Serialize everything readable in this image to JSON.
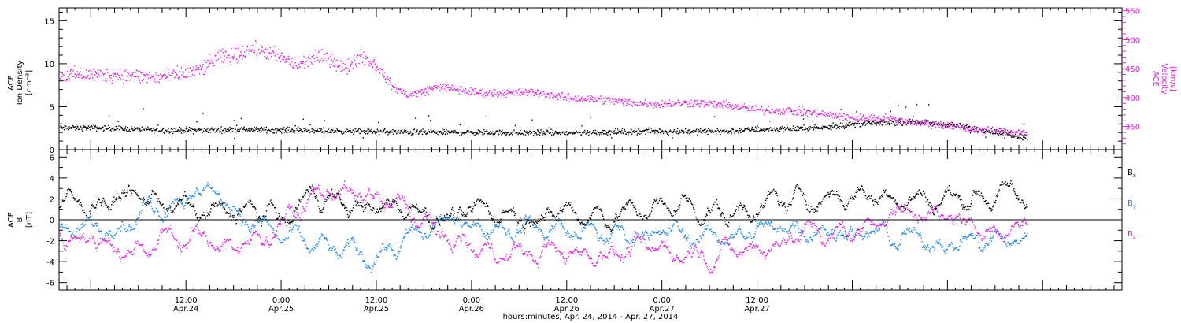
{
  "chart_data": [
    {
      "type": "scatter",
      "panel": "top",
      "left_axis": {
        "label_lines": [
          "ACE",
          "Ion Density",
          "[cm⁻³]"
        ],
        "ylim": [
          0,
          16.5
        ],
        "ticks": [
          0,
          5,
          10,
          15
        ],
        "color": "#000000"
      },
      "right_axis": {
        "label_lines": [
          "ACE",
          "Velocity",
          "[km/s]"
        ],
        "ylim": [
          310,
          555
        ],
        "ticks": [
          350,
          400,
          450,
          500,
          550
        ],
        "color": "#e020e0"
      },
      "series": [
        {
          "axis": "left",
          "color": "#000000",
          "profile_hours": [
            0,
            10,
            20,
            40,
            60,
            70,
            80,
            84,
            88,
            92,
            96,
            100,
            104,
            108,
            112,
            116,
            118
          ],
          "profile_values": [
            2.6,
            2.3,
            2.4,
            2.1,
            2.0,
            2.2,
            2.2,
            2.4,
            2.5,
            2.6,
            3.0,
            3.2,
            3.3,
            3.0,
            2.4,
            1.8,
            1.5
          ]
        },
        {
          "axis": "right",
          "color": "#e020e0",
          "profile_hours": [
            0,
            4,
            8,
            12,
            14,
            16,
            18,
            20,
            22,
            24,
            26,
            28,
            30,
            32,
            34,
            36,
            38,
            40,
            42,
            44,
            46,
            48,
            52,
            56,
            60,
            64,
            68,
            72,
            76,
            80,
            84,
            88,
            92,
            96,
            100,
            104,
            108,
            112,
            116,
            118
          ],
          "profile_values": [
            440,
            440,
            435,
            442,
            450,
            470,
            472,
            485,
            480,
            470,
            455,
            470,
            470,
            450,
            475,
            455,
            420,
            405,
            412,
            420,
            415,
            410,
            408,
            410,
            400,
            398,
            392,
            390,
            392,
            388,
            380,
            378,
            373,
            365,
            365,
            358,
            352,
            345,
            342,
            340
          ]
        }
      ]
    },
    {
      "type": "scatter",
      "panel": "bottom",
      "left_axis": {
        "label_lines": [
          "ACE",
          "B",
          "[nT]"
        ],
        "ylim": [
          -6.7,
          6.7
        ],
        "ticks": [
          -6,
          -4,
          -2,
          0,
          2,
          4,
          6
        ],
        "color": "#000000"
      },
      "zero_line": 0,
      "series": [
        {
          "name": "Bx",
          "label_main": "B",
          "label_sub": "x",
          "color": "#000000",
          "profile_hours": [
            0,
            5,
            10,
            15,
            20,
            25,
            28,
            30,
            35,
            40,
            45,
            50,
            55,
            60,
            65,
            70,
            75,
            80,
            85,
            90,
            95,
            100,
            105,
            110,
            115,
            118
          ],
          "profile_values": [
            1.5,
            2.5,
            1.5,
            0.5,
            1.0,
            0.0,
            3.0,
            2.0,
            1.0,
            1.5,
            0.0,
            1.0,
            0.5,
            0.8,
            0.5,
            1.0,
            1.5,
            0.5,
            1.5,
            2.0,
            2.5,
            2.5,
            2.0,
            2.2,
            2.4,
            2.5
          ]
        },
        {
          "name": "By",
          "label_main": "B",
          "label_sub": "y",
          "color": "#1e88e5",
          "profile_hours": [
            0,
            5,
            10,
            15,
            20,
            25,
            28,
            30,
            35,
            40,
            45,
            50,
            55,
            60,
            65,
            70,
            75,
            80,
            85,
            90,
            95,
            100,
            105,
            110,
            115,
            118
          ],
          "profile_values": [
            -1.0,
            0.5,
            2.0,
            3.0,
            0.0,
            -2.0,
            -2.5,
            -3.0,
            -3.5,
            -2.0,
            0.0,
            -0.5,
            -0.5,
            -1.0,
            -1.5,
            -1.0,
            -1.5,
            -1.5,
            -1.0,
            -0.5,
            -1.0,
            -1.5,
            -2.0,
            -2.0,
            -2.0,
            -1.8
          ]
        },
        {
          "name": "Bz",
          "label_main": "B",
          "label_sub": "z",
          "color": "#e020e0",
          "profile_hours": [
            0,
            5,
            10,
            15,
            20,
            25,
            28,
            30,
            35,
            40,
            45,
            50,
            55,
            60,
            65,
            70,
            75,
            80,
            85,
            90,
            95,
            100,
            105,
            110,
            115,
            118
          ],
          "profile_values": [
            -1.5,
            -3.0,
            -1.5,
            -2.0,
            -2.5,
            0.5,
            2.0,
            3.0,
            2.0,
            1.0,
            -2.0,
            -3.0,
            -3.2,
            -3.0,
            -3.0,
            -2.8,
            -3.0,
            -3.0,
            -2.5,
            -1.0,
            -1.5,
            0.5,
            1.0,
            -0.5,
            -1.0,
            0.0
          ]
        }
      ]
    }
  ],
  "x_axis": {
    "xlim_hours": [
      -4,
      130
    ],
    "major_ticks": [
      {
        "hour": 12,
        "time": "12:00",
        "date": "Apr.24"
      },
      {
        "hour": 24,
        "time": "0:00",
        "date": "Apr.25"
      },
      {
        "hour": 36,
        "time": "12:00",
        "date": "Apr.25"
      },
      {
        "hour": 48,
        "time": "0:00",
        "date": "Apr.26"
      },
      {
        "hour": 60,
        "time": "12:00",
        "date": "Apr.26"
      },
      {
        "hour": 72,
        "time": "0:00",
        "date": "Apr.27"
      },
      {
        "hour": 84,
        "time": "12:00",
        "date": "Apr.27"
      }
    ],
    "data_extent_hours": [
      -4,
      118
    ],
    "title": "hours:minutes, Apr. 24, 2014 - Apr. 27, 2014"
  }
}
